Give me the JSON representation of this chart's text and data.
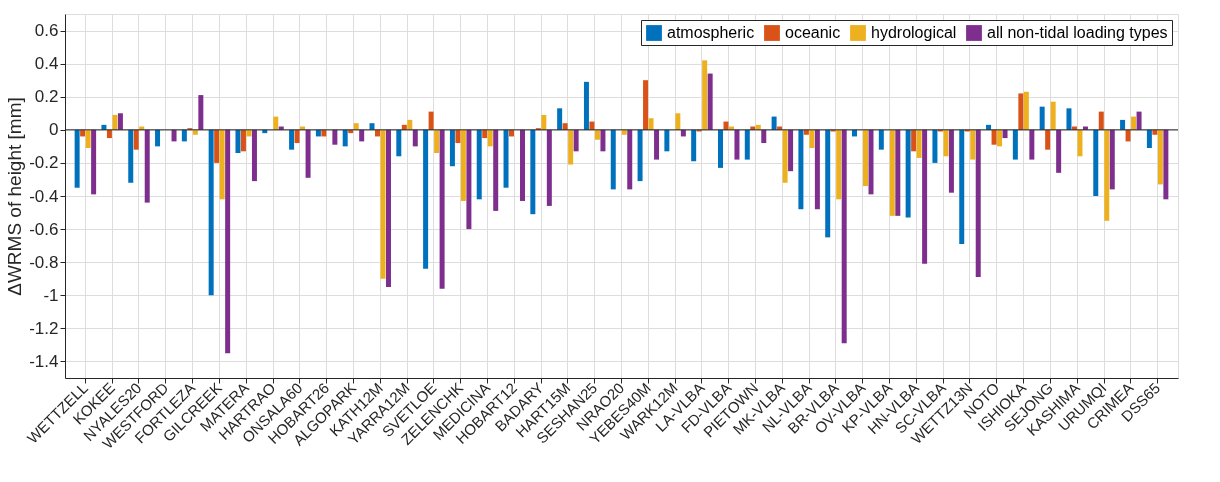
{
  "chart_data": {
    "type": "bar",
    "ylabel": "ΔWRMS of height [mm]",
    "categories": [
      "WETTZELL",
      "KOKEE",
      "NYALES20",
      "WESTFORD",
      "FORTLEZA",
      "GILCREEK",
      "MATERA",
      "HARTRAO",
      "ONSALA60",
      "HOBART26",
      "ALGOPARK",
      "KATH12M",
      "YARRA12M",
      "SVETLOE",
      "ZELENCHK",
      "MEDICINA",
      "HOBART12",
      "BADARY",
      "HART15M",
      "SESHAN25",
      "NRAO20",
      "YEBES40M",
      "WARK12M",
      "LA-VLBA",
      "FD-VLBA",
      "PIETOWN",
      "MK-VLBA",
      "NL-VLBA",
      "BR-VLBA",
      "OV-VLBA",
      "KP-VLBA",
      "HN-VLBA",
      "SC-VLBA",
      "WETTZ13N",
      "NOTO",
      "ISHIOKA",
      "SEJONG",
      "KASHIMA",
      "URUMQI",
      "CRIMEA",
      "DSS65"
    ],
    "series": [
      {
        "name": "atmospheric",
        "color": "#0072bd",
        "values": [
          -0.35,
          0.03,
          -0.32,
          -0.1,
          -0.07,
          -1.0,
          -0.14,
          -0.02,
          -0.12,
          -0.04,
          -0.1,
          0.04,
          -0.16,
          -0.84,
          -0.22,
          -0.42,
          -0.35,
          -0.51,
          0.13,
          0.29,
          -0.36,
          -0.31,
          -0.13,
          -0.19,
          -0.23,
          -0.18,
          0.08,
          -0.48,
          -0.65,
          -0.04,
          -0.12,
          -0.53,
          -0.2,
          -0.69,
          0.03,
          -0.18,
          0.14,
          0.13,
          -0.4,
          0.06,
          -0.11
        ]
      },
      {
        "name": "oceanic",
        "color": "#d95319",
        "values": [
          -0.04,
          -0.05,
          -0.12,
          0.0,
          0.01,
          -0.2,
          -0.13,
          0.0,
          -0.08,
          -0.04,
          -0.02,
          -0.04,
          0.03,
          0.11,
          -0.08,
          -0.05,
          -0.04,
          0.01,
          0.04,
          0.05,
          0.0,
          0.3,
          0.0,
          -0.01,
          0.05,
          0.02,
          0.02,
          -0.03,
          -0.01,
          0.0,
          0.0,
          -0.13,
          -0.01,
          -0.01,
          -0.09,
          0.22,
          -0.12,
          0.02,
          0.11,
          -0.07,
          -0.03
        ]
      },
      {
        "name": "hydrological",
        "color": "#edb120",
        "values": [
          -0.11,
          0.09,
          0.02,
          0.0,
          -0.03,
          -0.42,
          -0.04,
          0.08,
          0.02,
          0.0,
          0.04,
          -0.9,
          0.06,
          -0.14,
          -0.43,
          -0.1,
          0.0,
          0.09,
          -0.21,
          -0.06,
          -0.03,
          0.07,
          0.1,
          0.42,
          0.02,
          0.03,
          -0.32,
          -0.11,
          -0.42,
          -0.34,
          -0.52,
          -0.17,
          -0.16,
          -0.18,
          -0.1,
          0.23,
          0.17,
          -0.16,
          -0.55,
          0.08,
          -0.33
        ]
      },
      {
        "name": "all non-tidal loading types",
        "color": "#7e2f8e",
        "values": [
          -0.39,
          0.1,
          -0.44,
          -0.07,
          0.21,
          -1.35,
          -0.31,
          0.02,
          -0.29,
          -0.09,
          -0.07,
          -0.95,
          -0.1,
          -0.96,
          -0.6,
          -0.49,
          -0.43,
          -0.46,
          -0.13,
          -0.13,
          -0.36,
          -0.18,
          -0.04,
          0.34,
          -0.18,
          -0.08,
          -0.25,
          -0.48,
          -1.29,
          -0.39,
          -0.52,
          -0.81,
          -0.38,
          -0.89,
          -0.05,
          -0.18,
          -0.26,
          0.02,
          -0.36,
          0.11,
          -0.42
        ]
      }
    ],
    "ylim": [
      -1.5,
      0.7
    ],
    "yticks": [
      -1.4,
      -1.2,
      -1,
      -0.8,
      -0.6,
      -0.4,
      -0.2,
      0,
      0.2,
      0.4,
      0.6
    ],
    "ref_lines": [
      {
        "axis": "y",
        "value": 0,
        "color": "#262626"
      }
    ],
    "grid": true,
    "legend": "top right"
  }
}
